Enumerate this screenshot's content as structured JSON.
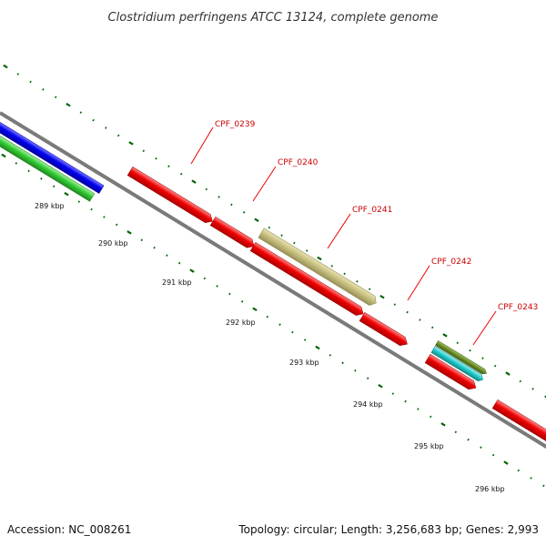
{
  "title": "Clostridium perfringens ATCC 13124, complete genome",
  "footer": {
    "accession": "Accession: NC_008261",
    "summary": "Topology: circular; Length: 3,256,683 bp; Genes: 2,993"
  },
  "scale_ticks": [
    "289 kbp",
    "290 kbp",
    "291 kbp",
    "292 kbp",
    "293 kbp",
    "294 kbp",
    "295 kbp",
    "296 kbp"
  ],
  "gene_labels": [
    "CPF_0239",
    "CPF_0240",
    "CPF_0241",
    "CPF_0242",
    "CPF_0243"
  ],
  "colors": {
    "backbone": "#808080",
    "cds_red": "#ee0000",
    "rrna_blue": "#0000ee",
    "trna_green": "#33cc33",
    "khaki": "#c8c080",
    "cyan": "#22cccc",
    "olive": "#6b8e23",
    "dots": "#006400",
    "label_red": "#cc0000"
  }
}
